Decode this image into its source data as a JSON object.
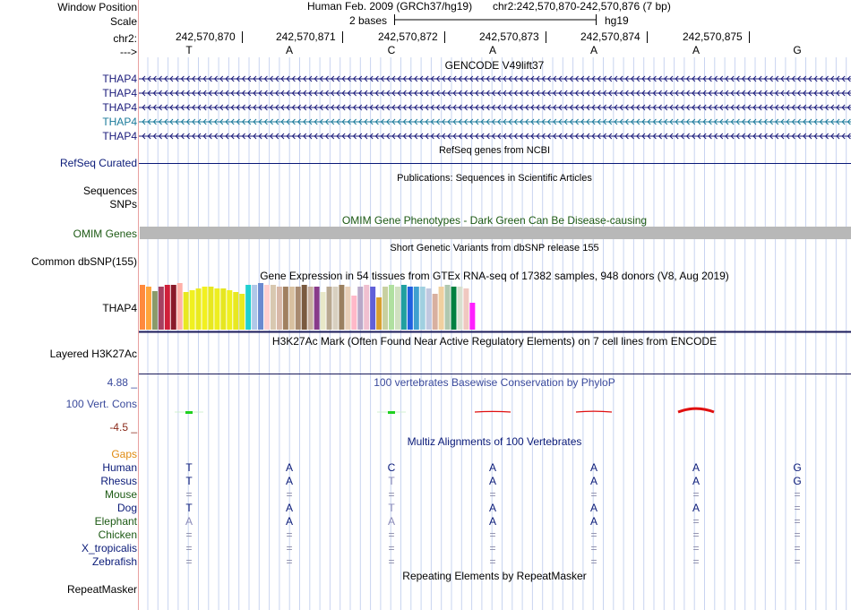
{
  "header": {
    "window_position_label": "Window Position",
    "assembly": "Human Feb. 2009 (GRCh37/hg19)",
    "position": "chr2:242,570,870-242,570,876 (7 bp)",
    "scale_label": "Scale",
    "scale_text": "2 bases",
    "scale_assembly": "hg19",
    "chrom_label": "chr2:",
    "strand_label": "--->",
    "coordinates": [
      "242,570,870",
      "242,570,871",
      "242,570,872",
      "242,570,873",
      "242,570,874",
      "242,570,875"
    ],
    "bases": [
      "T",
      "A",
      "C",
      "A",
      "A",
      "A",
      "G"
    ]
  },
  "tracks": {
    "gencode": {
      "title": "GENCODE V49lift37",
      "transcripts": [
        {
          "label": "THAP4",
          "color": "#1a1a7a"
        },
        {
          "label": "THAP4",
          "color": "#1a1a7a"
        },
        {
          "label": "THAP4",
          "color": "#1a1a7a"
        },
        {
          "label": "THAP4",
          "color": "#1a7a9a"
        },
        {
          "label": "THAP4",
          "color": "#1a1a7a"
        }
      ]
    },
    "refseq": {
      "title": "RefSeq genes from NCBI",
      "label": "RefSeq Curated"
    },
    "publications": {
      "title": "Publications: Sequences in Scientific Articles",
      "label": "Sequences",
      "label2": "SNPs"
    },
    "omim": {
      "title": "OMIM Gene Phenotypes - Dark Green Can Be Disease-causing",
      "label": "OMIM Genes"
    },
    "dbsnp": {
      "title": "Short Genetic Variants from dbSNP release 155",
      "label": "Common dbSNP(155)"
    },
    "gtex": {
      "title": "Gene Expression in 54 tissues from GTEx RNA-seq of 17382 samples, 948 donors (V8, Aug 2019)",
      "gene": "THAP4",
      "bar_values": [
        50,
        48,
        43,
        48,
        50,
        50,
        52,
        42,
        44,
        46,
        48,
        48,
        46,
        46,
        44,
        42,
        40,
        50,
        50,
        52,
        50,
        50,
        48,
        48,
        48,
        48,
        50,
        48,
        48,
        42,
        48,
        48,
        50,
        48,
        38,
        48,
        50,
        48,
        36,
        48,
        50,
        48,
        50,
        48,
        48,
        48,
        46,
        40,
        48,
        50,
        48,
        48,
        46,
        30
      ],
      "bar_colors": [
        "#ff8a3d",
        "#ffa53b",
        "#8a9a6a",
        "#a64060",
        "#d0203a",
        "#8a1a2a",
        "#ffb0a8",
        "#e8e820",
        "#f0f020",
        "#eaea20",
        "#f2f020",
        "#e8e820",
        "#eeee20",
        "#e6e620",
        "#f0f020",
        "#e8e820",
        "#eaea20",
        "#20d0d0",
        "#b0c8e8",
        "#6a8ad0",
        "#ffd0d0",
        "#d8c8b0",
        "#d8b8a8",
        "#a08060",
        "#d8c0a0",
        "#a88a70",
        "#7a5a40",
        "#c8b0a0",
        "#883a8a",
        "#e8e8c8",
        "#b8a890",
        "#d8d0c0",
        "#9a8060",
        "#e8d0b8",
        "#ffb8c8",
        "#b8a8c8",
        "#f0c0d0",
        "#6060d8",
        "#d8a030",
        "#c8d0a0",
        "#b0e0a0",
        "#d0e0c0",
        "#20a0a0",
        "#2060e0",
        "#40a0d0",
        "#a0d0e0",
        "#c0c8e0",
        "#d8b0a0",
        "#f0d0a0",
        "#b0c8b0",
        "#008040",
        "#d8e0d0",
        "#f0c8c0",
        "#ff20ff"
      ]
    },
    "h3k27ac": {
      "title": "H3K27Ac Mark (Often Found Near Active Regulatory Elements) on 7 cell lines from ENCODE",
      "label": "Layered H3K27Ac"
    },
    "conservation": {
      "title": "100 vertebrates Basewise Conservation by PhyloP",
      "label": "100 Vert. Cons",
      "max_label": "4.88 _",
      "min_label": "-4.5 _",
      "scores": [
        0.4,
        0,
        0.4,
        -0.2,
        -0.3,
        -1.3,
        0
      ]
    },
    "multiz": {
      "title": "Multiz Alignments of 100 Vertebrates",
      "gaps_label": "Gaps",
      "species": [
        {
          "name": "Human",
          "color": "#0a1a78",
          "bases": [
            "T",
            "A",
            "C",
            "A",
            "A",
            "A",
            "G"
          ]
        },
        {
          "name": "Rhesus",
          "color": "#0a1a78",
          "bases": [
            "T",
            "A",
            "T",
            "A",
            "A",
            "A",
            "G"
          ]
        },
        {
          "name": "Mouse",
          "color": "#1d5a14",
          "bases": [
            "=",
            "=",
            "=",
            "=",
            "=",
            "=",
            "="
          ]
        },
        {
          "name": "Dog",
          "color": "#0a1a78",
          "bases": [
            "T",
            "A",
            "T",
            "A",
            "A",
            "A",
            "="
          ]
        },
        {
          "name": "Elephant",
          "color": "#1d5a14",
          "bases": [
            "A",
            "A",
            "A",
            "A",
            "A",
            "=",
            "="
          ]
        },
        {
          "name": "Chicken",
          "color": "#1d5a14",
          "bases": [
            "=",
            "=",
            "=",
            "=",
            "=",
            "=",
            "="
          ]
        },
        {
          "name": "X_tropicalis",
          "color": "#0a1a78",
          "bases": [
            "=",
            "=",
            "=",
            "=",
            "=",
            "=",
            "="
          ]
        },
        {
          "name": "Zebrafish",
          "color": "#0a1a78",
          "bases": [
            "=",
            "=",
            "=",
            "=",
            "=",
            "=",
            "="
          ]
        }
      ]
    },
    "repeatmasker": {
      "title": "Repeating Elements by RepeatMasker",
      "label": "RepeatMasker"
    }
  }
}
